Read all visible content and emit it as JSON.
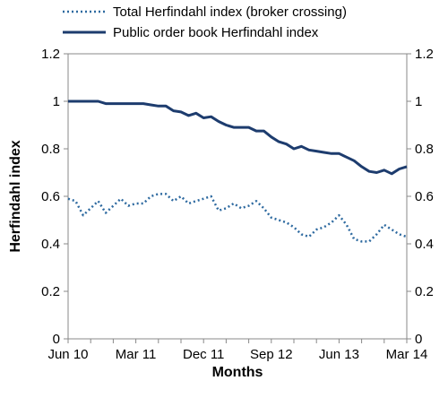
{
  "chart_data": {
    "type": "line",
    "xlabel": "Months",
    "ylabel": "Herfindahl index",
    "ylim": [
      0,
      1.2
    ],
    "yticks": [
      "0",
      "0.2",
      "0.4",
      "0.6",
      "0.8",
      "1",
      "1.2"
    ],
    "ytick_values": [
      0,
      0.2,
      0.4,
      0.6,
      0.8,
      1.0,
      1.2
    ],
    "secondary_y_axis": true,
    "x_tick_labels": [
      "Jun 10",
      "Mar 11",
      "Dec 11",
      "Sep 12",
      "Jun 13",
      "Mar 14"
    ],
    "x_tick_positions": [
      0,
      9,
      18,
      27,
      36,
      45
    ],
    "grid": false,
    "legend_position": "top",
    "x": [
      0,
      1,
      2,
      3,
      4,
      5,
      6,
      7,
      8,
      9,
      10,
      11,
      12,
      13,
      14,
      15,
      16,
      17,
      18,
      19,
      20,
      21,
      22,
      23,
      24,
      25,
      26,
      27,
      28,
      29,
      30,
      31,
      32,
      33,
      34,
      35,
      36,
      37,
      38,
      39,
      40,
      41,
      42,
      43,
      44,
      45
    ],
    "series": [
      {
        "name": "Total Herfindahl index (broker crossing)",
        "style": "dotted",
        "color": "#2e6aa0",
        "values": [
          0.59,
          0.58,
          0.52,
          0.55,
          0.58,
          0.53,
          0.56,
          0.59,
          0.56,
          0.57,
          0.57,
          0.6,
          0.61,
          0.61,
          0.58,
          0.6,
          0.57,
          0.58,
          0.59,
          0.6,
          0.54,
          0.55,
          0.57,
          0.55,
          0.56,
          0.58,
          0.55,
          0.51,
          0.5,
          0.49,
          0.47,
          0.44,
          0.43,
          0.46,
          0.47,
          0.49,
          0.52,
          0.48,
          0.42,
          0.41,
          0.41,
          0.44,
          0.48,
          0.46,
          0.44,
          0.43
        ]
      },
      {
        "name": "Public order book Herfindahl index",
        "style": "solid",
        "color": "#1d3c6e",
        "values": [
          1.0,
          1.0,
          1.0,
          1.0,
          1.0,
          0.99,
          0.99,
          0.99,
          0.99,
          0.99,
          0.99,
          0.985,
          0.98,
          0.98,
          0.96,
          0.955,
          0.94,
          0.95,
          0.93,
          0.935,
          0.915,
          0.9,
          0.89,
          0.89,
          0.89,
          0.875,
          0.875,
          0.85,
          0.83,
          0.82,
          0.8,
          0.81,
          0.795,
          0.79,
          0.785,
          0.78,
          0.78,
          0.765,
          0.75,
          0.725,
          0.705,
          0.7,
          0.71,
          0.695,
          0.715,
          0.725
        ]
      }
    ]
  }
}
